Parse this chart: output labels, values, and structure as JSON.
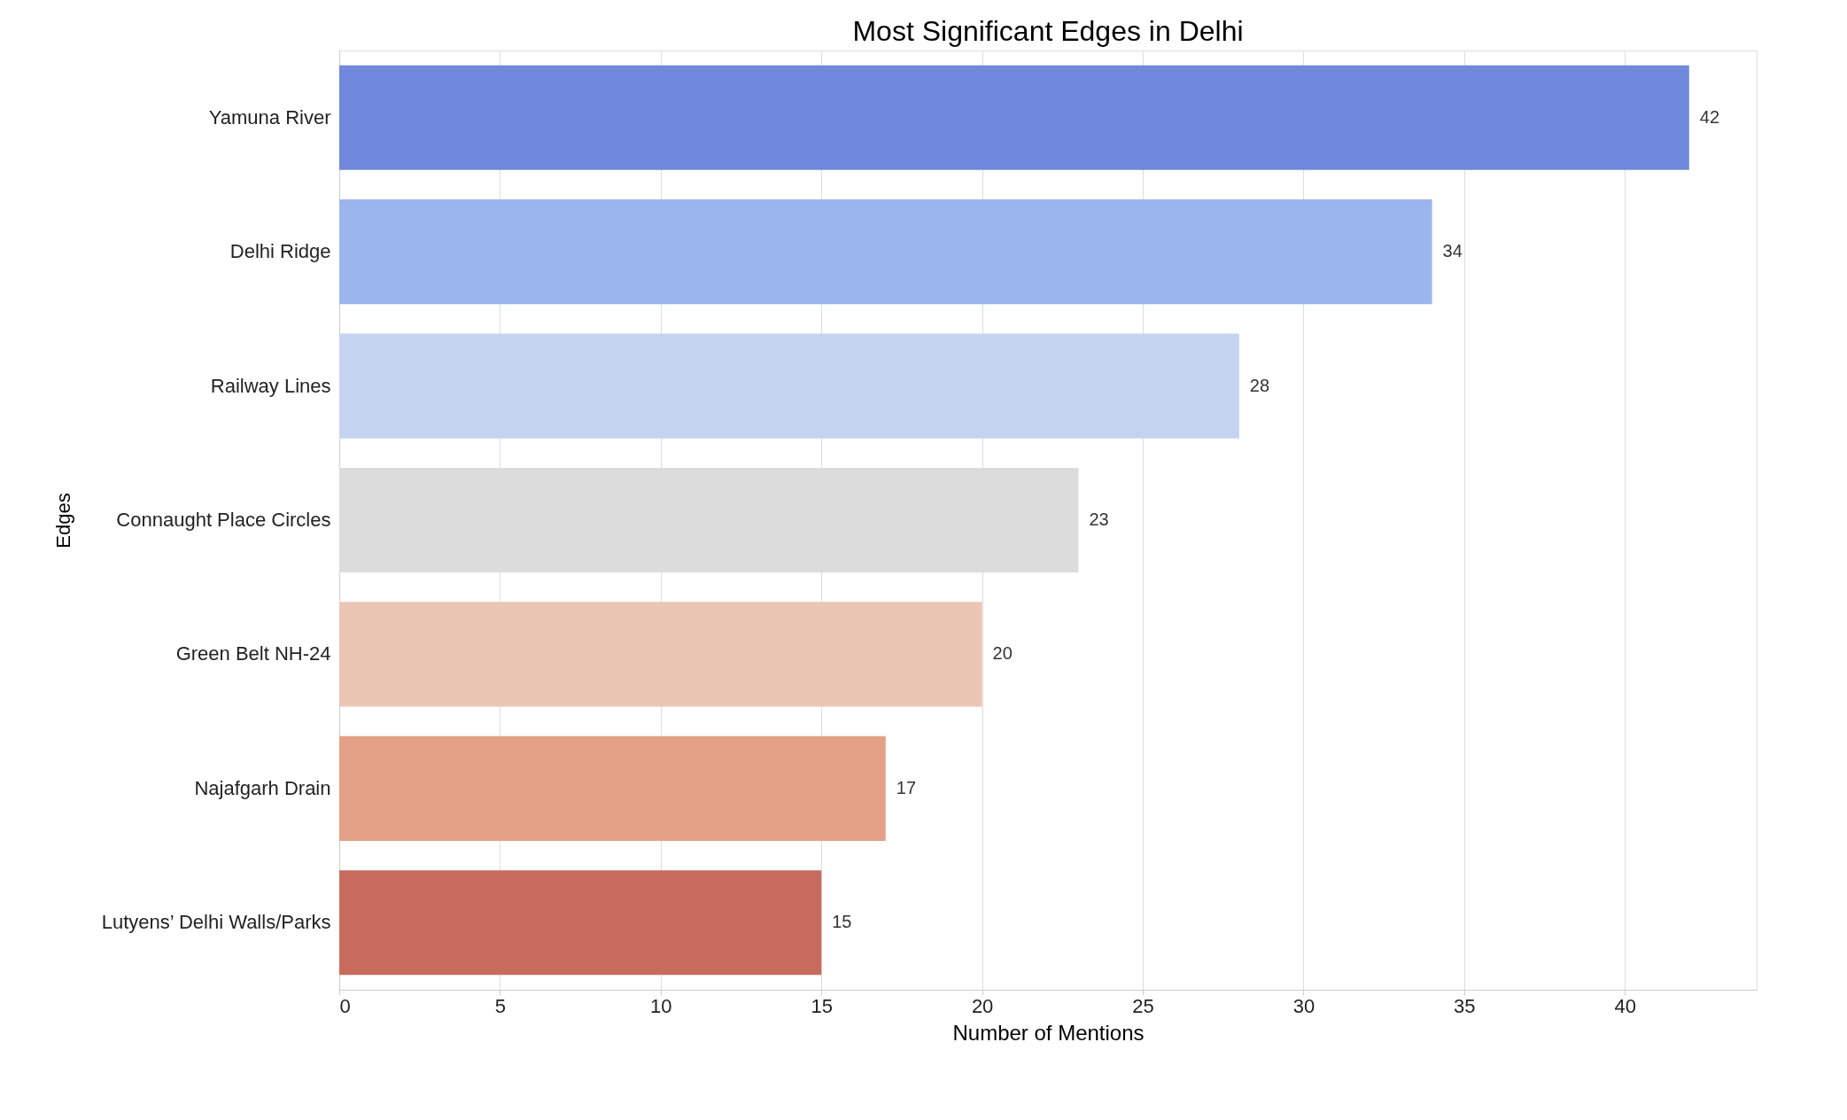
{
  "chart_data": {
    "type": "bar",
    "orientation": "horizontal",
    "title": "Most Significant Edges in Delhi",
    "xlabel": "Number of Mentions",
    "ylabel": "Edges",
    "categories": [
      "Yamuna River",
      "Delhi Ridge",
      "Railway Lines",
      "Connaught Place Circles",
      "Green Belt NH-24",
      "Najafgarh Drain",
      "Lutyens’ Delhi Walls/Parks"
    ],
    "values": [
      42,
      34,
      28,
      23,
      20,
      17,
      15
    ],
    "colors": [
      "#7089dc",
      "#9bb5ee",
      "#c4d4f0",
      "#dcdcdc",
      "#ebc6b4",
      "#e4a086",
      "#c96b5c"
    ],
    "xlim": [
      0,
      44.1
    ],
    "xticks": [
      0,
      5,
      10,
      15,
      20,
      25,
      30,
      35,
      40
    ],
    "grid": "x",
    "data_labels": true
  }
}
